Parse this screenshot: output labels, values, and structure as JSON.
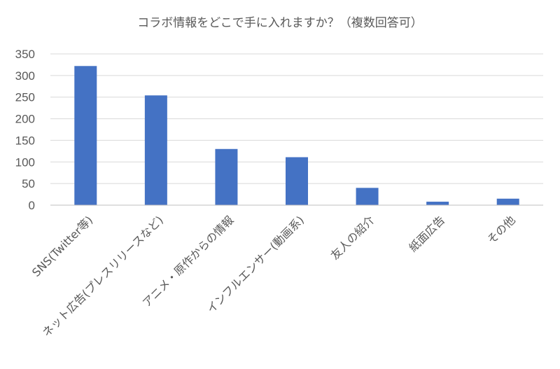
{
  "chart_data": {
    "type": "bar",
    "title": "コラボ情報をどこで手に入れますか？（複数回答可）",
    "xlabel": "",
    "ylabel": "",
    "categories": [
      "SNS(Twitter等)",
      "ネット広告(プレスリリースなど)",
      "アニメ・原作からの情報",
      "インフルエンサー(動画系)",
      "友人の紹介",
      "紙面広告",
      "その他"
    ],
    "values": [
      322,
      254,
      130,
      111,
      40,
      8,
      15
    ],
    "ylim": [
      0,
      350
    ],
    "yticks": [
      0,
      50,
      100,
      150,
      200,
      250,
      300,
      350
    ],
    "grid": true,
    "legend": "none",
    "bar_color": "#4472c4"
  }
}
